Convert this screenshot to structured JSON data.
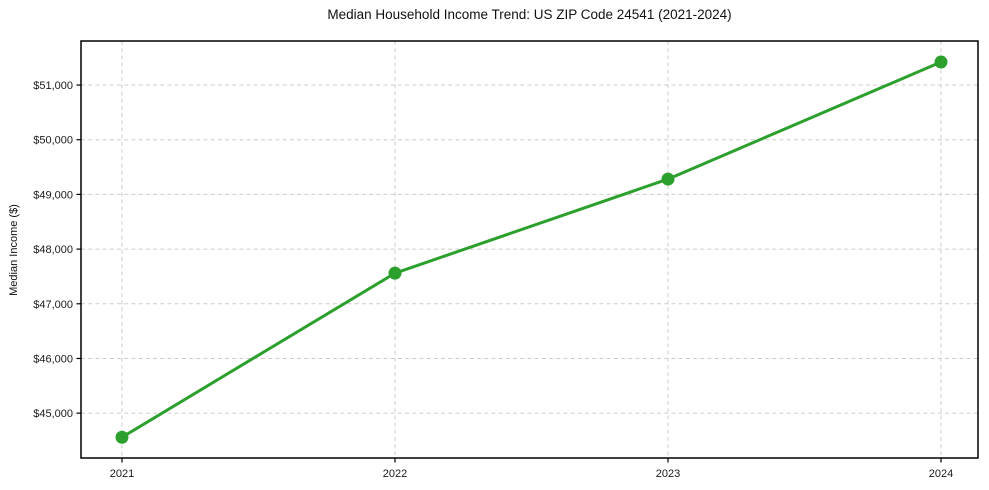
{
  "chart_data": {
    "type": "line",
    "title": "Median Household Income Trend: US ZIP Code 24541 (2021-2024)",
    "xlabel": "",
    "ylabel": "Median Income ($)",
    "categories": [
      "2021",
      "2022",
      "2023",
      "2024"
    ],
    "values": [
      44560,
      47560,
      49280,
      51420
    ],
    "ytick_values": [
      45000,
      46000,
      47000,
      48000,
      49000,
      50000,
      51000
    ],
    "ytick_labels": [
      "$45,000",
      "$46,000",
      "$47,000",
      "$48,000",
      "$49,000",
      "$50,000",
      "$51,000"
    ],
    "ylim": [
      44180,
      51805
    ],
    "grid": true,
    "grid_style": "dashed",
    "legend": "none",
    "colors": {
      "line": "#2ca02c",
      "marker": "#2ca02c",
      "grid": "#cccccc",
      "axis": "#000000",
      "text": "#1a1a1a",
      "background": "#ffffff"
    }
  }
}
